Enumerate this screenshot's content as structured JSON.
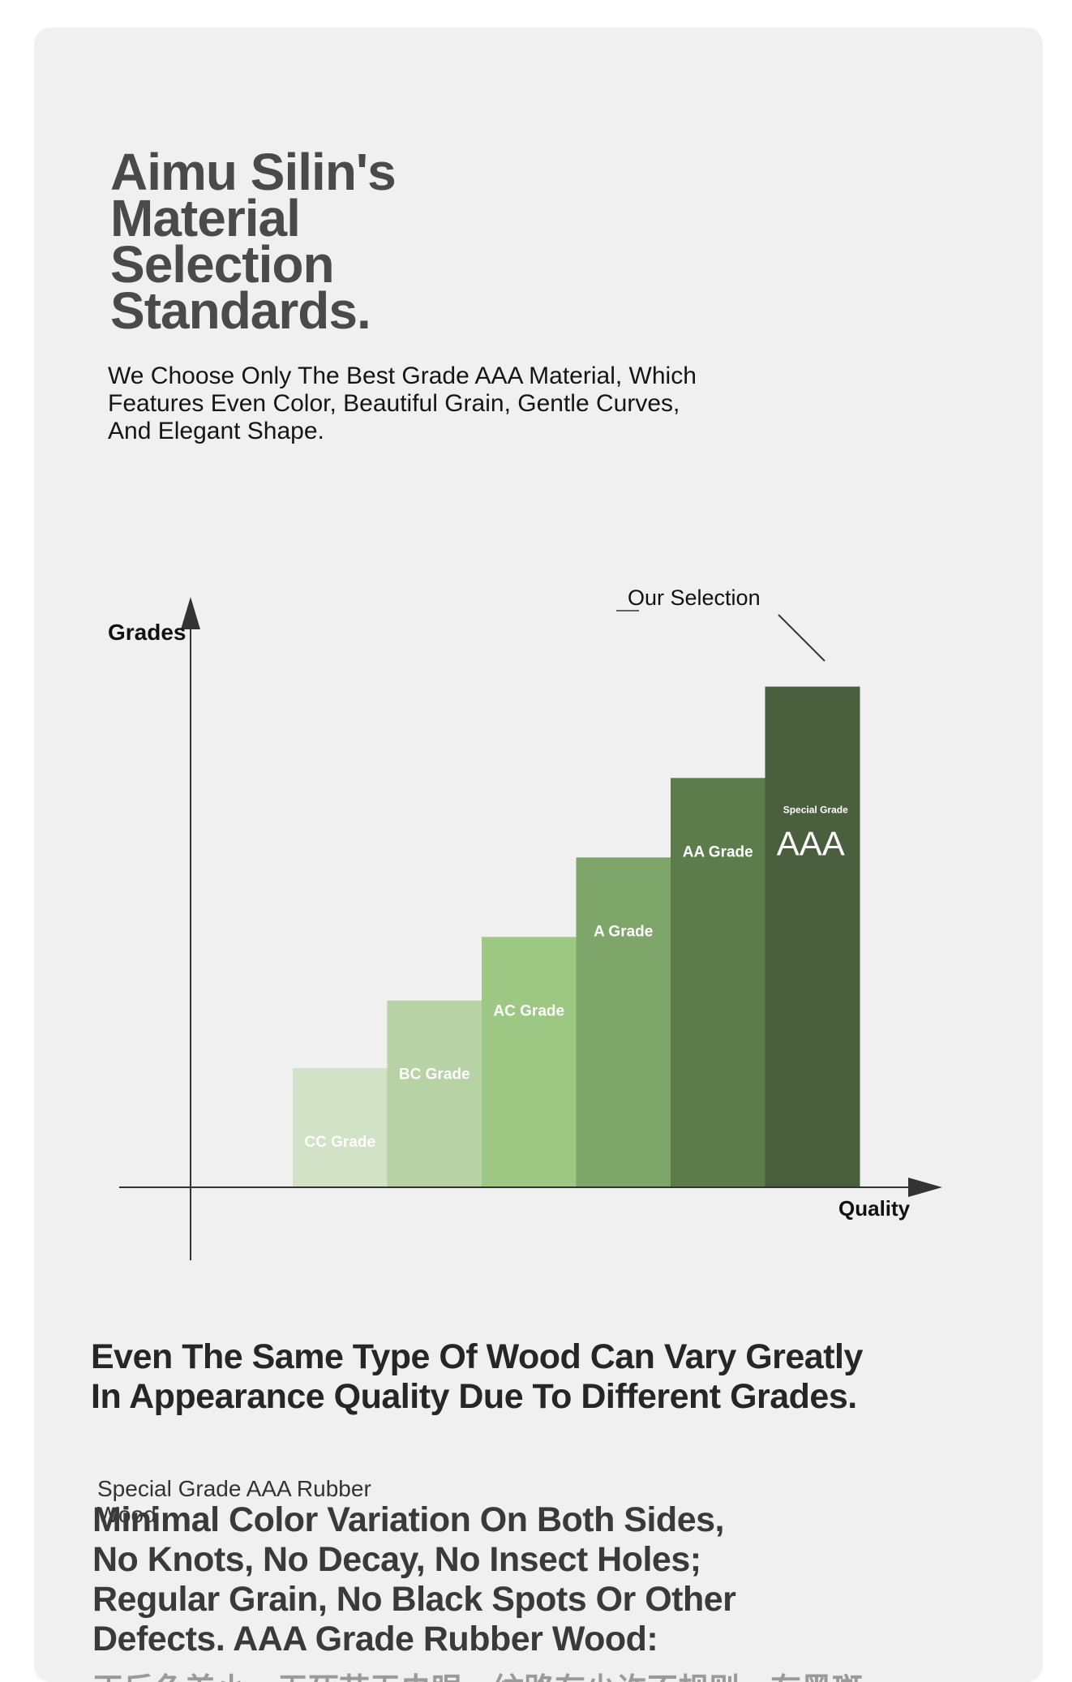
{
  "header": {
    "title_lines": [
      "Aimu Silin's",
      "Material",
      "Selection",
      "Standards."
    ],
    "subtitle_lines": [
      "We Choose Only The Best Grade AAA Material, Which",
      "Features Even Color, Beautiful Grain, Gentle Curves,",
      "And Elegant Shape."
    ]
  },
  "chart_data": {
    "type": "bar",
    "ylabel": "Grades",
    "xlabel": "Quality",
    "annotation": "Our Selection",
    "axis_ticks_shown": false,
    "grid": false,
    "categories": [
      "CC Grade",
      "BC Grade",
      "AC Grade",
      "A Grade",
      "AA Grade",
      "AAA"
    ],
    "bar_top_note": "Special Grade",
    "values": [
      1.5,
      2.35,
      3.15,
      4.15,
      5.15,
      6.3
    ],
    "ylim": [
      0,
      7.5
    ],
    "colors": [
      "#d1e2c7",
      "#b7d3a5",
      "#9dc884",
      "#7ea66a",
      "#5c7c4c",
      "#4a5f3e"
    ],
    "highlight_index": 5
  },
  "section": {
    "heading_lines": [
      "Even The Same Type Of Wood Can Vary Greatly",
      "In Appearance Quality Due To Different Grades."
    ],
    "caption": "Special Grade AAA Rubber Wood",
    "body_lines": [
      "Minimal Color Variation On Both Sides,",
      "No Knots, No Decay, No Insect Holes;",
      "Regular Grain, No Black Spots Or Other",
      "Defects. AAA Grade Rubber Wood:"
    ],
    "cn_partial": "正反色差小，无死节无虫眼，纹路有少许不规则，有黑斑"
  }
}
